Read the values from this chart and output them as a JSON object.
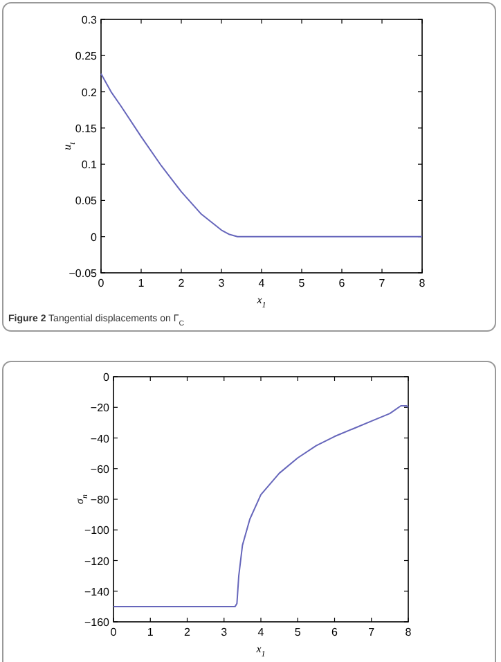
{
  "chart_data": [
    {
      "type": "line",
      "xlabel": "x$_{1}$",
      "ylabel": "u$_{t}$",
      "annotations": [
        "Figure 2 Tangential displacements on Γ$_{C}$"
      ],
      "xlim": [
        0,
        8
      ],
      "ylim": [
        -0.05,
        0.3
      ],
      "xticks": [
        0,
        1,
        2,
        3,
        4,
        5,
        6,
        7,
        8
      ],
      "yticks": [
        -0.05,
        0,
        0.05,
        0.1,
        0.15,
        0.2,
        0.25,
        0.3
      ],
      "grid": false,
      "series": [
        {
          "color": "#6666bb",
          "x": [
            0,
            0.25,
            0.5,
            1,
            1.5,
            2,
            2.5,
            3,
            3.2,
            3.4,
            4,
            5,
            6,
            7,
            8
          ],
          "values": [
            0.225,
            0.2,
            0.18,
            0.138,
            0.098,
            0.062,
            0.031,
            0.009,
            0.003,
            0,
            0,
            0,
            0,
            0,
            0
          ]
        }
      ]
    },
    {
      "type": "line",
      "xlabel": "x$_{1}$",
      "ylabel": "σ$_{n}$",
      "xlim": [
        0,
        8
      ],
      "ylim": [
        -160,
        0
      ],
      "xticks": [
        0,
        1,
        2,
        3,
        4,
        5,
        6,
        7,
        8
      ],
      "yticks": [
        -160,
        -140,
        -120,
        -100,
        -80,
        -60,
        -40,
        -20,
        0
      ],
      "grid": false,
      "series": [
        {
          "color": "#6666bb",
          "x": [
            0,
            1,
            2,
            3,
            3.3,
            3.35,
            3.4,
            3.5,
            3.7,
            4,
            4.5,
            5,
            5.5,
            6,
            6.5,
            7,
            7.5,
            7.8,
            7.95,
            8
          ],
          "values": [
            -150,
            -150,
            -150,
            -150,
            -150,
            -148,
            -130,
            -110,
            -93,
            -77,
            -63,
            -53,
            -45,
            -39,
            -34,
            -29,
            -24,
            -19,
            -19,
            -20
          ]
        }
      ]
    }
  ]
}
